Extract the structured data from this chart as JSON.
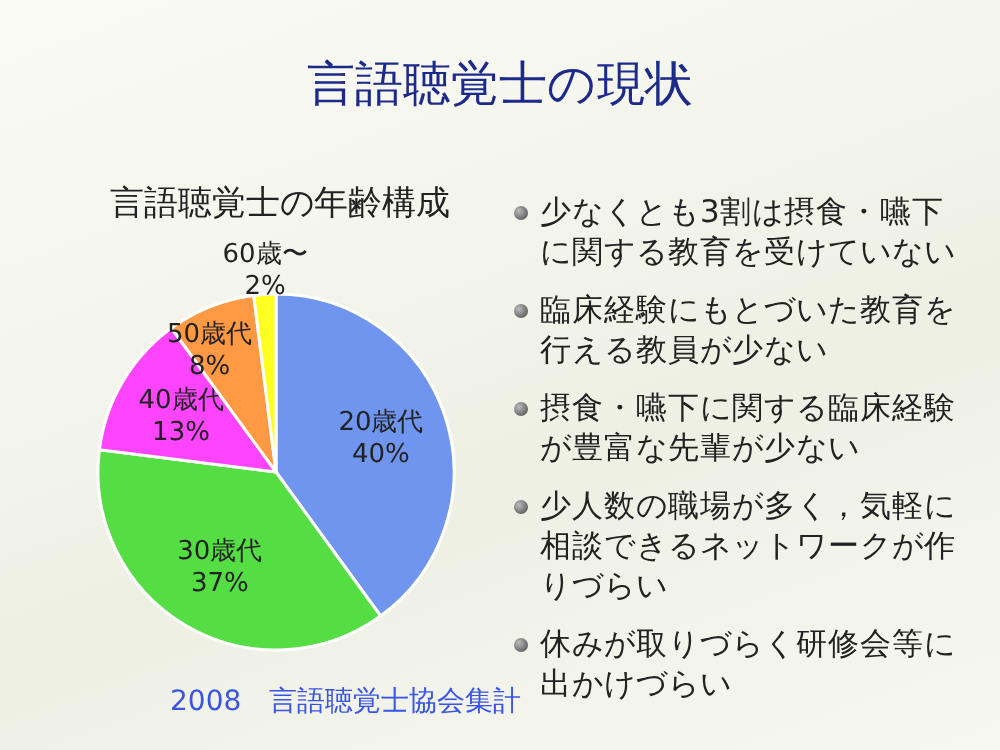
{
  "chart_data": {
    "type": "pie",
    "title": "言語聴覚士の現状",
    "subtitle": "言語聴覚士の年齢構成",
    "categories": [
      "20歳代",
      "30歳代",
      "40歳代",
      "50歳代",
      "60歳〜"
    ],
    "values": [
      40,
      37,
      13,
      8,
      2
    ],
    "value_labels": [
      "40%",
      "37%",
      "13%",
      "8%",
      "2%"
    ],
    "colors": [
      "#6f95ee",
      "#55dd44",
      "#ff44ff",
      "#ff9944",
      "#ffff22"
    ],
    "annotations": [
      "少なくとも3割は摂食・嚥下に関する教育を受けていない",
      "臨床経験にもとづいた教育を行える教員が少ない",
      "摂食・嚥下に関する臨床経験が豊富な先輩が少ない",
      "少人数の職場が多く，気軽に相談できるネットワークが作りづらい",
      "休みが取りづらく研修会等に出かけづらい",
      "2008　言語聴覚士協会集計"
    ]
  }
}
